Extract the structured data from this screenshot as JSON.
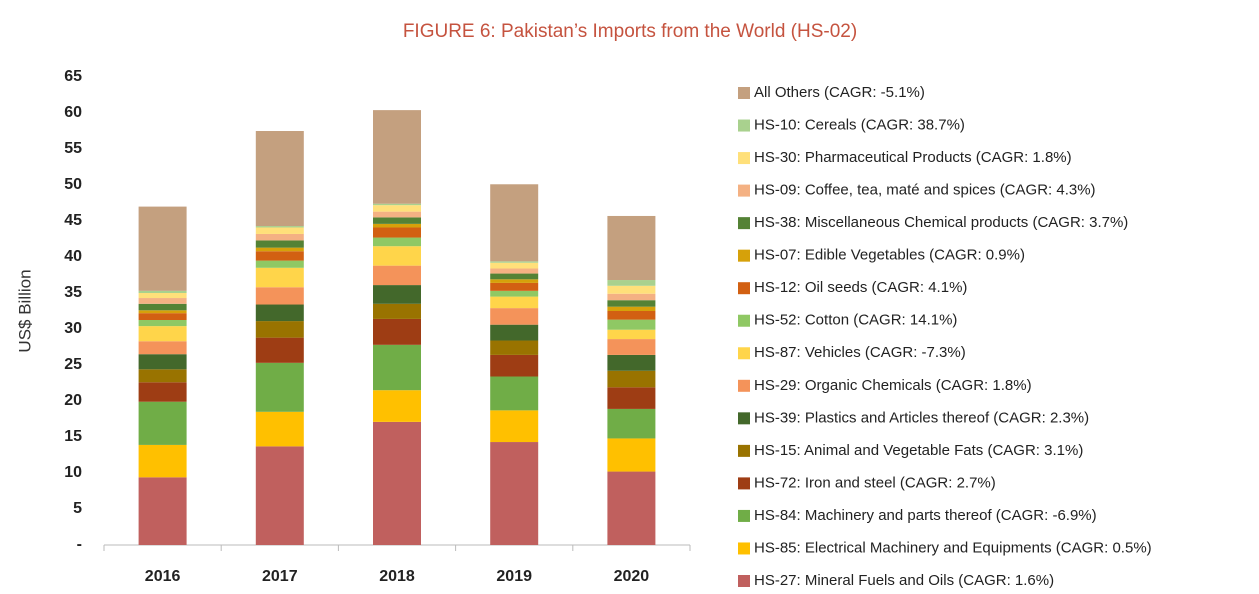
{
  "chart_data": {
    "type": "stacked_bar",
    "title": "FIGURE 6: Pakistan’s Imports from the World (HS-02)",
    "y_label": "US$ Billion",
    "categories": [
      "2016",
      "2017",
      "2018",
      "2019",
      "2020"
    ],
    "ylim": [
      0,
      65
    ],
    "yticks": [
      {
        "value": 0,
        "label": "-"
      },
      5,
      10,
      15,
      20,
      25,
      30,
      35,
      40,
      45,
      50,
      55,
      60,
      65
    ],
    "grid": false,
    "legend": "right",
    "series": [
      {
        "name": "HS-27: Mineral Fuels and Oils (CAGR: 1.6%)",
        "color": "#c0605e",
        "values": [
          9.4,
          13.7,
          17.1,
          14.3,
          10.2
        ]
      },
      {
        "name": "HS-85: Electrical Machinery and Equipments (CAGR: 0.5%)",
        "color": "#ffc000",
        "values": [
          4.5,
          4.8,
          4.4,
          4.4,
          4.6
        ]
      },
      {
        "name": "HS-84: Machinery and parts thereof (CAGR: -6.9%)",
        "color": "#70ad47",
        "values": [
          6.0,
          6.8,
          6.3,
          4.7,
          4.1
        ]
      },
      {
        "name": "HS-72: Iron and steel (CAGR: 2.7%)",
        "color": "#9e3d14",
        "values": [
          2.7,
          3.5,
          3.6,
          3.0,
          3.0
        ]
      },
      {
        "name": "HS-15: Animal and Vegetable Fats (CAGR: 3.1%)",
        "color": "#997300",
        "values": [
          1.8,
          2.3,
          2.1,
          2.0,
          2.3
        ]
      },
      {
        "name": "HS-39: Plastics and Articles thereof (CAGR: 2.3%)",
        "color": "#43682b",
        "values": [
          2.1,
          2.3,
          2.6,
          2.2,
          2.2
        ]
      },
      {
        "name": "HS-29: Organic Chemicals (CAGR: 1.8%)",
        "color": "#f4935a",
        "values": [
          1.8,
          2.4,
          2.7,
          2.3,
          2.2
        ]
      },
      {
        "name": "HS-87: Vehicles (CAGR: -7.3%)",
        "color": "#ffd54a",
        "values": [
          2.1,
          2.7,
          2.7,
          1.6,
          1.3
        ]
      },
      {
        "name": "HS-52: Cotton (CAGR: 14.1%)",
        "color": "#8fc864",
        "values": [
          0.85,
          1.0,
          1.2,
          0.8,
          1.4
        ]
      },
      {
        "name": "HS-12: Oil seeds (CAGR: 4.1%)",
        "color": "#d26012",
        "values": [
          0.95,
          1.3,
          1.4,
          1.1,
          1.2
        ]
      },
      {
        "name": "HS-07: Edible Vegetables (CAGR: 0.9%)",
        "color": "#d6a10a",
        "values": [
          0.4,
          0.5,
          0.5,
          0.5,
          0.6
        ]
      },
      {
        "name": "HS-38: Miscellaneous Chemical products (CAGR: 3.7%)",
        "color": "#548235",
        "values": [
          0.9,
          1.0,
          0.9,
          0.8,
          0.9
        ]
      },
      {
        "name": "HS-09: Coffee, tea, maté and spices (CAGR: 4.3%)",
        "color": "#f4b183",
        "values": [
          0.8,
          0.9,
          0.8,
          0.7,
          0.9
        ]
      },
      {
        "name": "HS-30: Pharmaceutical Products (CAGR: 1.8%)",
        "color": "#ffe07a",
        "values": [
          0.7,
          0.9,
          0.9,
          0.8,
          1.1
        ]
      },
      {
        "name": "HS-10: Cereals (CAGR: 38.7%)",
        "color": "#a9d18e",
        "values": [
          0.3,
          0.2,
          0.2,
          0.2,
          0.8
        ]
      },
      {
        "name": "All Others (CAGR: -5.1%)",
        "color": "#c4a07f",
        "values": [
          11.7,
          13.2,
          13.0,
          10.7,
          8.9
        ]
      }
    ]
  }
}
